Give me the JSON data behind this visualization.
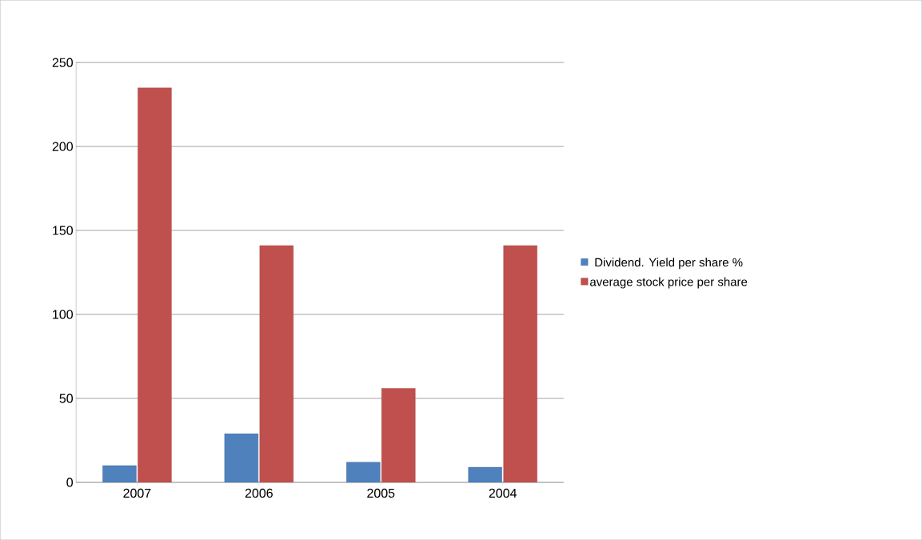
{
  "chart_data": {
    "type": "bar",
    "categories": [
      "2007",
      "2006",
      "2005",
      "2004"
    ],
    "series": [
      {
        "name": "Dividend. Yield per share %",
        "color": "#4f81bd",
        "values": [
          10,
          29,
          12,
          9
        ]
      },
      {
        "name": "average stock price per share",
        "color": "#c0504d",
        "values": [
          235,
          141,
          56,
          141
        ]
      }
    ],
    "ylim": [
      0,
      250
    ],
    "yticks": [
      0,
      50,
      100,
      150,
      200,
      250
    ],
    "grid": "y",
    "legend": "right"
  }
}
